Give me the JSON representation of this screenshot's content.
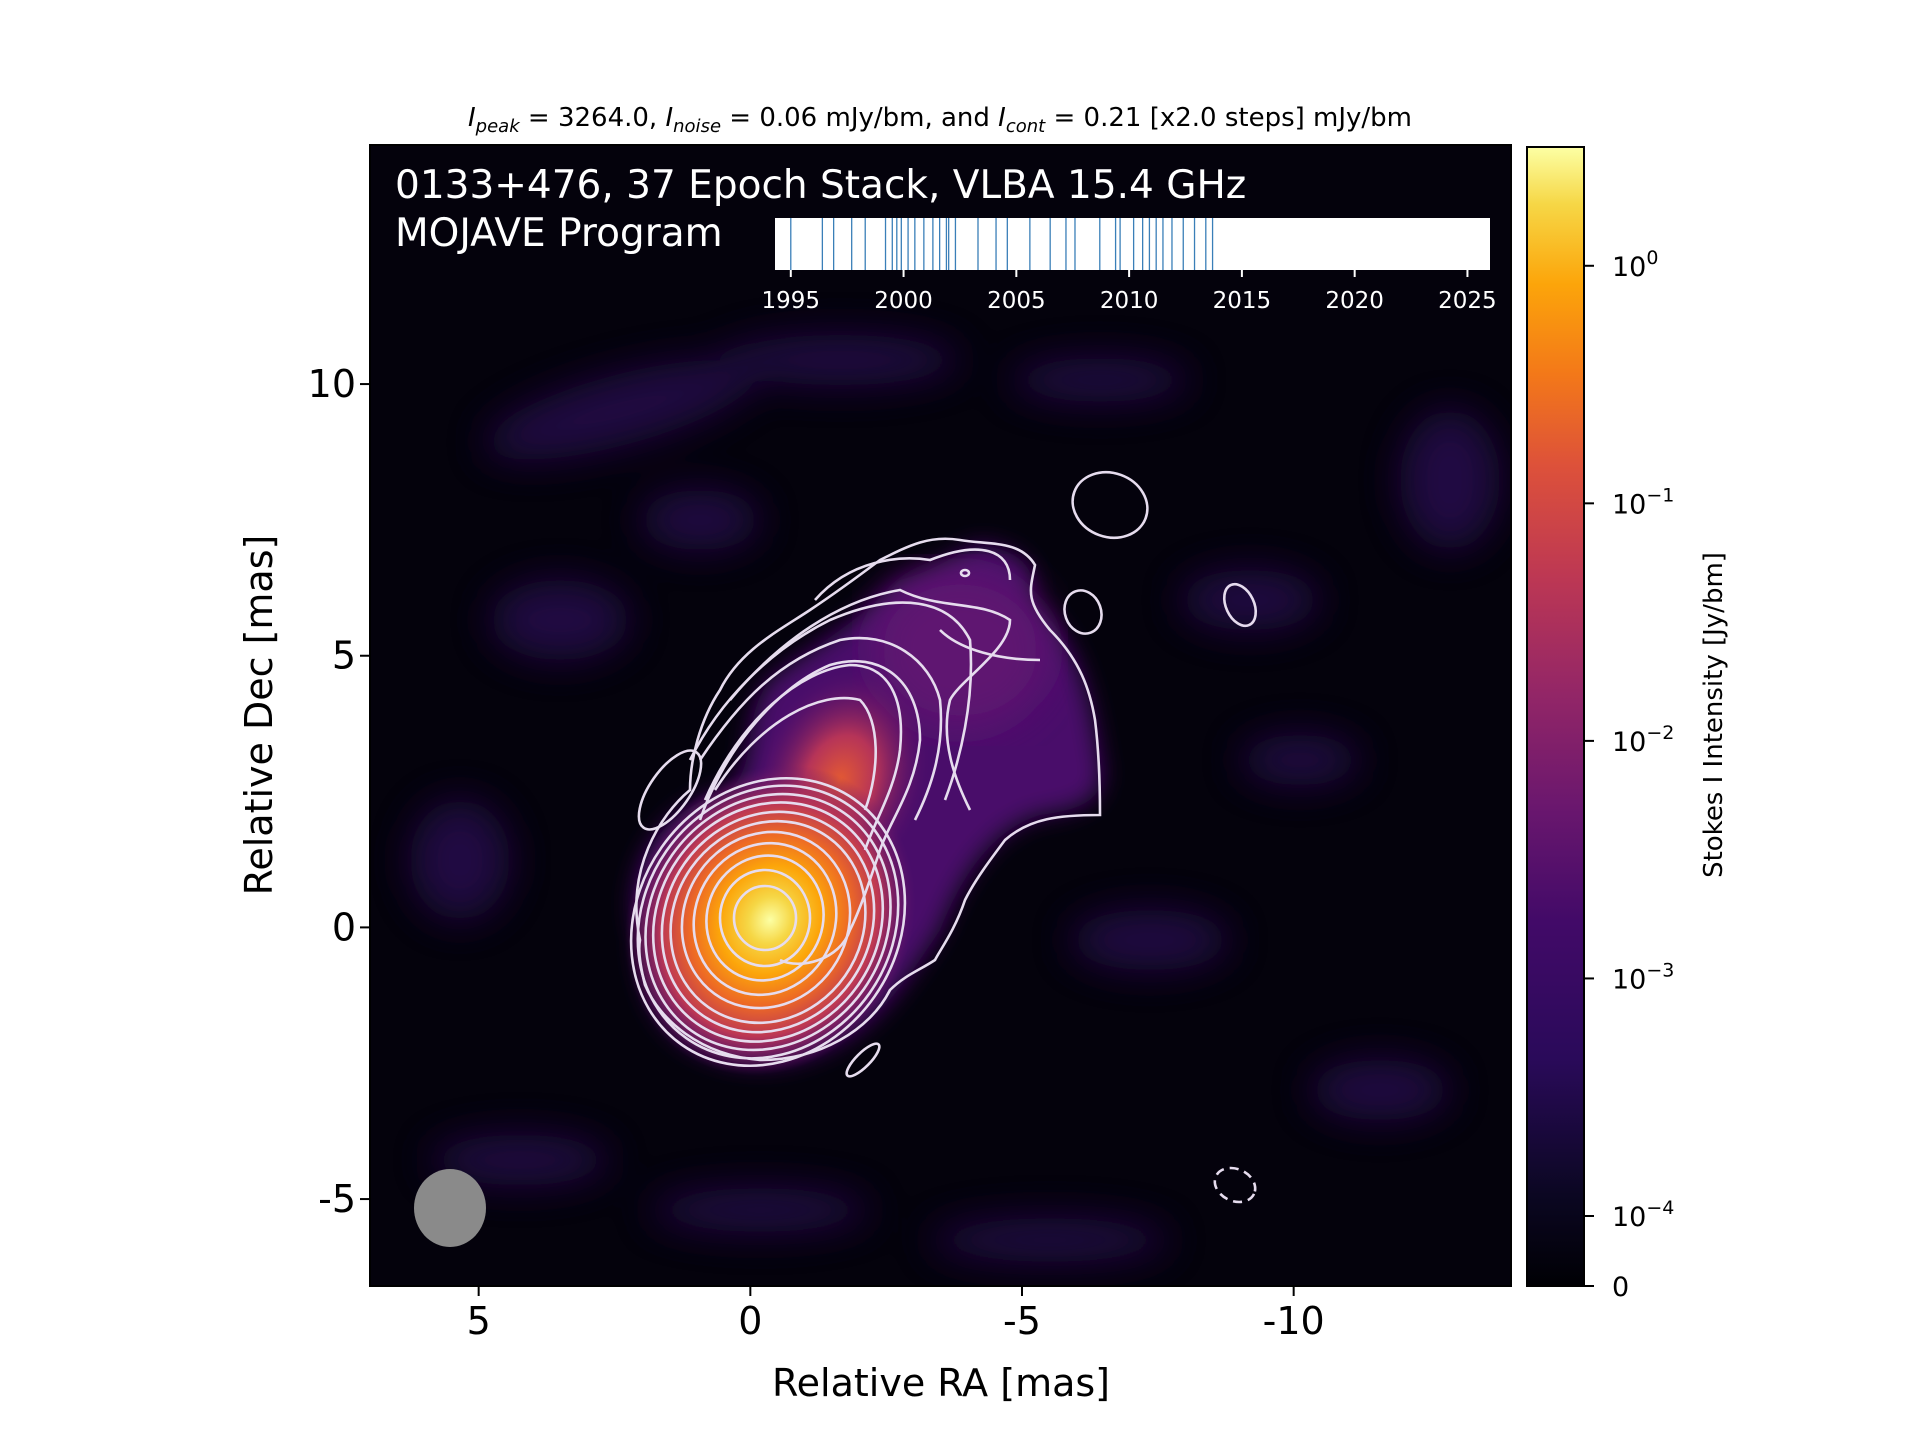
{
  "chart_data": {
    "type": "heatmap",
    "title_parts": {
      "I_peak_sym": "I",
      "I_peak_sub": "peak",
      "I_peak_val": " = 3264.0, ",
      "I_noise_sym": "I",
      "I_noise_sub": "noise",
      "I_noise_val": " = 0.06 mJy/bm, and ",
      "I_cont_sym": "I",
      "I_cont_sub": "cont",
      "I_cont_val": " = 0.21 [x2.0 steps] mJy/bm"
    },
    "overlay_line1": "0133+476, 37 Epoch Stack, VLBA 15.4 GHz",
    "overlay_line2": "MOJAVE Program",
    "xlabel": "Relative RA [mas]",
    "ylabel": "Relative Dec [mas]",
    "xlim": [
      7,
      -14
    ],
    "ylim": [
      -6.6,
      14.4
    ],
    "x_ticks": [
      5,
      0,
      -5,
      -10
    ],
    "y_ticks": [
      10,
      5,
      0,
      -5
    ],
    "x_tick_labels": [
      "5",
      "0",
      "-5",
      "-10"
    ],
    "y_tick_labels": [
      "10",
      "5",
      "0",
      "-5"
    ],
    "colorbar": {
      "label": "Stokes I Intensity [Jy/bm]",
      "colormap": "inferno",
      "scale": "log",
      "tick_labels": [
        {
          "base": "10",
          "exp": "0",
          "value": 1
        },
        {
          "base": "10",
          "exp": "−1",
          "value": 0.1
        },
        {
          "base": "10",
          "exp": "−2",
          "value": 0.01
        },
        {
          "base": "10",
          "exp": "−3",
          "value": 0.001
        },
        {
          "base": "10",
          "exp": "−4",
          "value": 0.0001
        },
        {
          "base": "0",
          "exp": "",
          "value": 0
        }
      ]
    },
    "epoch_timeline": {
      "xlim": [
        1994.3,
        2026.0
      ],
      "ticks": [
        1995,
        2000,
        2005,
        2010,
        2015,
        2020,
        2025
      ],
      "tick_labels": [
        "1995",
        "2000",
        "2005",
        "2010",
        "2015",
        "2020",
        "2025"
      ],
      "epochs": [
        1995.0,
        1996.4,
        1996.9,
        1997.7,
        1998.3,
        1999.2,
        1999.5,
        1999.7,
        1999.9,
        2000.2,
        2000.5,
        2000.9,
        2001.3,
        2001.6,
        2001.9,
        2002.0,
        2002.3,
        2003.3,
        2004.1,
        2004.6,
        2005.6,
        2006.5,
        2007.2,
        2007.6,
        2008.7,
        2009.4,
        2009.6,
        2010.2,
        2010.6,
        2010.9,
        2011.2,
        2011.5,
        2011.9,
        2012.4,
        2012.9,
        2013.4,
        2013.7
      ],
      "color": "#3a7fb8"
    },
    "beam": {
      "major_mas": 1.4,
      "minor_mas": 1.3,
      "color": "#8a8a8a"
    },
    "source": {
      "core": {
        "ra": 0,
        "dec": 0,
        "peak_jy": 3.264
      },
      "components": [
        {
          "ra": -1.4,
          "dec": 2.4,
          "flux_rel": 0.03
        },
        {
          "ra": -3.3,
          "dec": 4.4,
          "flux_rel": 0.001
        }
      ]
    },
    "contour_color": "#e6dcee",
    "negative_contour_style": "dashed"
  }
}
